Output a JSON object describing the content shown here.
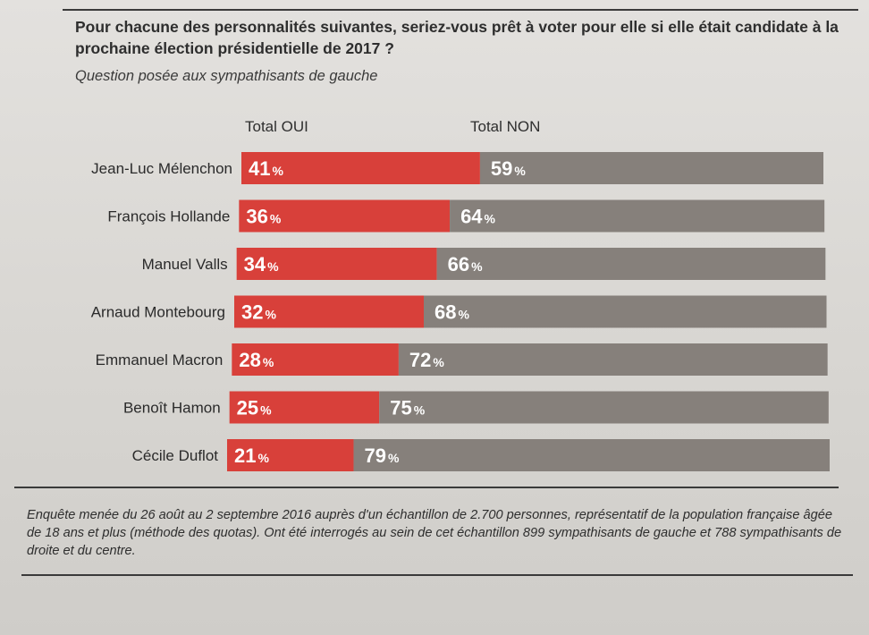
{
  "header": {
    "question": "Pour chacune des personnalités suivantes, seriez-vous prêt à voter pour elle si elle était candidate à la prochaine élection présidentielle de 2017 ?",
    "subtitle": "Question posée aux sympathisants de gauche"
  },
  "columns": {
    "oui": "Total OUI",
    "non": "Total NON"
  },
  "colors": {
    "oui": "#d8403a",
    "non": "#86807b",
    "text": "#2a2a2a"
  },
  "chart_data": {
    "type": "bar",
    "orientation": "horizontal",
    "stacked": true,
    "unit": "%",
    "categories": [
      "Jean-Luc Mélenchon",
      "François Hollande",
      "Manuel Valls",
      "Arnaud Montebourg",
      "Emmanuel Macron",
      "Benoît Hamon",
      "Cécile Duflot"
    ],
    "series": [
      {
        "name": "Total OUI",
        "values": [
          41,
          36,
          34,
          32,
          28,
          25,
          21
        ]
      },
      {
        "name": "Total NON",
        "values": [
          59,
          64,
          66,
          68,
          72,
          75,
          79
        ]
      }
    ],
    "xlim": [
      0,
      100
    ],
    "legend": "top",
    "grid": false
  },
  "footnote": "Enquête menée du 26 août au 2 septembre 2016 auprès d'un échantillon de 2.700 personnes, représentatif de la population française âgée de 18 ans et plus (méthode des quotas). Ont été interrogés au sein de cet échantillon 899 sympathisants de gauche et 788 sympathisants de droite et du centre."
}
